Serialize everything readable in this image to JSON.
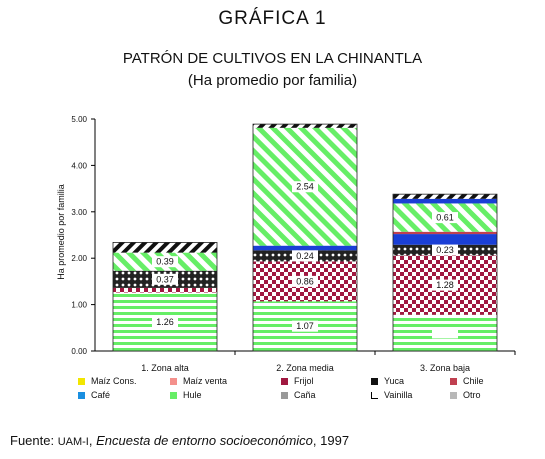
{
  "figure": {
    "label": "GRÁFICA 1",
    "title": "PATRÓN DE CULTIVOS EN LA CHINANTLA",
    "subtitle": "(Ha promedio por familia)"
  },
  "source": {
    "prefix": "Fuente: ",
    "org": "UAM-I",
    "sep": ", ",
    "title": "Encuesta de entorno socioeconómico",
    "year": ", 1997"
  },
  "chart_data": {
    "type": "bar",
    "stacked": true,
    "ylabel": "Ha promedio por familia",
    "xlabel": "",
    "ylim": [
      0,
      5
    ],
    "yticks": [
      "0.00",
      "1.00",
      "2.00",
      "3.00",
      "4.00",
      "5.00"
    ],
    "categories": [
      "1. Zona alta",
      "2. Zona media",
      "3. Zona baja"
    ],
    "series": [
      {
        "name": "Hule",
        "color": "#66ee66",
        "pattern": "hstripe",
        "values": [
          1.26,
          1.07,
          0.78
        ]
      },
      {
        "name": "Frijol",
        "color": "#a01840",
        "pattern": "check",
        "values": [
          0.1,
          0.86,
          1.28
        ]
      },
      {
        "name": "Yuca",
        "color": "#111111",
        "pattern": "dots",
        "values": [
          0.37,
          0.24,
          0.23
        ]
      },
      {
        "name": "Café",
        "color": "#1a3fd6",
        "pattern": "solid",
        "values": [
          0.0,
          0.1,
          0.23
        ]
      },
      {
        "name": "Chile",
        "color": "#c04050",
        "pattern": "solid",
        "values": [
          0.0,
          0.0,
          0.05
        ]
      },
      {
        "name": "Maíz Cons.",
        "color": "#66ee66",
        "pattern": "diag",
        "values": [
          0.39,
          2.54,
          0.61
        ]
      },
      {
        "name": "Caña",
        "color": "#1a3fd6",
        "pattern": "solid",
        "values": [
          0.0,
          0.0,
          0.1
        ]
      },
      {
        "name": "Vainilla",
        "color": "#111111",
        "pattern": "hatch",
        "values": [
          0.22,
          0.08,
          0.1
        ]
      }
    ],
    "data_labels": [
      {
        "category": 0,
        "series": 0,
        "text": "1.26"
      },
      {
        "category": 0,
        "series": 2,
        "text": "0.37"
      },
      {
        "category": 0,
        "series": 5,
        "text": "0.39"
      },
      {
        "category": 1,
        "series": 0,
        "text": "1.07"
      },
      {
        "category": 1,
        "series": 1,
        "text": "0.86"
      },
      {
        "category": 1,
        "series": 2,
        "text": "0.24"
      },
      {
        "category": 1,
        "series": 5,
        "text": "2.54"
      },
      {
        "category": 2,
        "series": 0,
        "text": ""
      },
      {
        "category": 2,
        "series": 1,
        "text": "1.28"
      },
      {
        "category": 2,
        "series": 2,
        "text": "0.23"
      },
      {
        "category": 2,
        "series": 5,
        "text": "0.61"
      }
    ],
    "legend": [
      {
        "name": "Maíz Cons.",
        "color": "#f2e600"
      },
      {
        "name": "Maíz venta",
        "color": "#f4908c"
      },
      {
        "name": "Frijol",
        "color": "#a01840"
      },
      {
        "name": "Yuca",
        "color": "#111111"
      },
      {
        "name": "Chile",
        "color": "#c04050"
      },
      {
        "name": "Café",
        "color": "#1a8fe0"
      },
      {
        "name": "Hule",
        "color": "#66ee66"
      },
      {
        "name": "Caña",
        "color": "#999999"
      },
      {
        "name": "Vainilla",
        "color": "#ffffff"
      },
      {
        "name": "Otro",
        "color": "#b8b8b8"
      }
    ],
    "legend_placement": "bottom",
    "grid": false
  }
}
